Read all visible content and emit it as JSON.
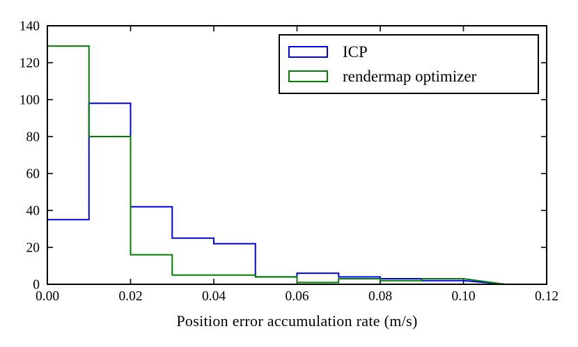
{
  "chart_data": {
    "type": "step-histogram",
    "title": "",
    "xlabel": "Position error accumulation rate (m/s)",
    "ylabel": "",
    "xlim": [
      0,
      0.12
    ],
    "ylim": [
      0,
      140
    ],
    "grid": false,
    "legend_position": "upper right",
    "bin_width": 0.01,
    "bin_edges": [
      0.0,
      0.01,
      0.02,
      0.03,
      0.04,
      0.05,
      0.06,
      0.07,
      0.08,
      0.09,
      0.1
    ],
    "x_ticks": [
      "0.00",
      "0.02",
      "0.04",
      "0.06",
      "0.08",
      "0.10",
      "0.12"
    ],
    "y_ticks": [
      "0",
      "20",
      "40",
      "60",
      "80",
      "100",
      "120",
      "140"
    ],
    "series": [
      {
        "name": "ICP",
        "color": "#0000ee",
        "values": [
          35,
          98,
          42,
          25,
          22,
          4,
          6,
          4,
          3,
          2
        ]
      },
      {
        "name": "rendermap optimizer",
        "color": "#007f00",
        "values": [
          129,
          80,
          16,
          5,
          5,
          4,
          1,
          3,
          2,
          3
        ]
      }
    ]
  },
  "legend": {
    "items": [
      {
        "label": "ICP",
        "color": "#0000ee"
      },
      {
        "label": "rendermap optimizer",
        "color": "#007f00"
      }
    ]
  },
  "colors": {
    "axis": "#000000",
    "background": "#ffffff",
    "icp": "#0000ee",
    "rendermap": "#007f00"
  }
}
